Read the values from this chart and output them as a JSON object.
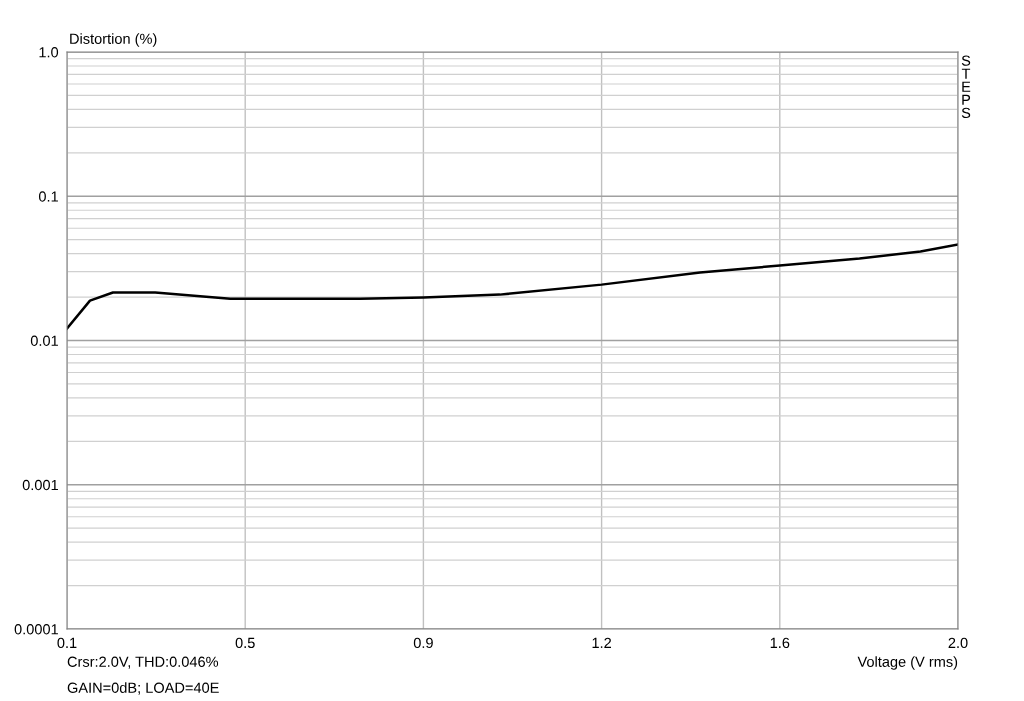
{
  "chart_data": {
    "type": "line",
    "ylabel": "Distortion (%)",
    "xlabel": "Voltage (V rms)",
    "x": [
      0.1,
      0.149,
      0.198,
      0.288,
      0.448,
      0.48,
      0.725,
      0.86,
      1.023,
      1.24,
      1.45,
      1.62,
      1.79,
      1.92,
      2.0
    ],
    "series": [
      {
        "color": "#000000",
        "values": [
          0.0121,
          0.0189,
          0.0215,
          0.0215,
          0.0195,
          0.0195,
          0.0195,
          0.0199,
          0.0208,
          0.0244,
          0.0296,
          0.0331,
          0.037,
          0.0414,
          0.0463
        ]
      }
    ],
    "log": "y",
    "xlim": [
      0.1,
      2.0
    ],
    "ylim": [
      0.0001,
      1.0
    ],
    "xticks": [
      0.1,
      {
        "value": 0.48,
        "label": "0.5"
      },
      {
        "value": 0.86,
        "label": "0.9"
      },
      {
        "value": 1.24,
        "label": "1.2"
      },
      {
        "value": 1.62,
        "label": "1.6"
      },
      {
        "value": 2.0,
        "label": "2.0"
      }
    ],
    "yticks": [
      0.0001,
      0.001,
      0.01,
      0.1,
      {
        "value": 1.0,
        "label": "1.0"
      }
    ],
    "grid": true,
    "line_style": "solid",
    "marker": "none",
    "annotations": [
      "STEPS",
      "Crsr:2.0V, THD:0.046%",
      "GAIN=0dB; LOAD=40E"
    ]
  }
}
